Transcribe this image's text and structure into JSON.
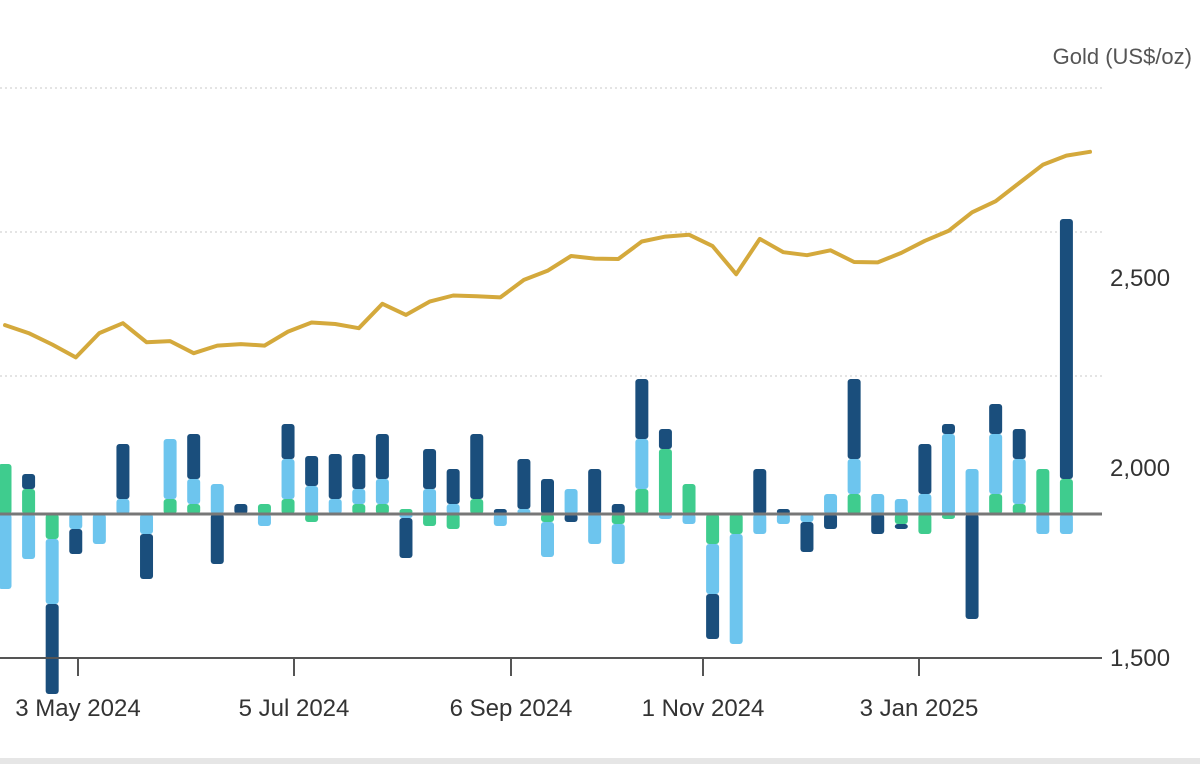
{
  "chart_data": {
    "type": "bar+line",
    "title": "",
    "right_axis": {
      "title": "Gold (US$/oz)",
      "ticks": [
        "1,500",
        "2,000",
        "2,500"
      ],
      "tick_values": [
        1500,
        2000,
        2500
      ],
      "range": [
        1500,
        3000
      ],
      "note": "upper gridlines at 2,750 and 3,000 are unlabeled in the crop"
    },
    "x_axis": {
      "tick_labels": [
        "3 May 2024",
        "5 Jul 2024",
        "6 Sep 2024",
        "1 Nov 2024",
        "3 Jan 2025"
      ]
    },
    "grid": true,
    "colors": {
      "gold_line": "#d4a93c",
      "series_dark_blue": "#1a4e7c",
      "series_light_blue": "#6dc5ee",
      "series_green": "#3fcc8e",
      "baseline": "#777777"
    },
    "series": [
      {
        "values": [
          2376,
          2355,
          2325,
          2291,
          2355,
          2381,
          2331,
          2334,
          2302,
          2322,
          2326,
          2322,
          2359,
          2383,
          2379,
          2368,
          2432,
          2403,
          2438,
          2454,
          2452,
          2449,
          2495,
          2519,
          2558,
          2551,
          2550,
          2596,
          2609,
          2614,
          2584,
          2510,
          2603,
          2568,
          2560,
          2573,
          2542,
          2541,
          2566,
          2598,
          2624,
          2673,
          2702,
          2750,
          2798,
          2822,
          2832
        ]
      }
    ],
    "stacked_bars": {
      "baseline_pixel_note": "zero line of the bar panel",
      "bars": [
        {
          "green": 50,
          "light_blue": -75,
          "dark_blue": 0
        },
        {
          "green": 25,
          "light_blue": -45,
          "dark_blue": 15
        },
        {
          "green": -25,
          "light_blue": -65,
          "dark_blue": -90
        },
        {
          "green": 0,
          "light_blue": -15,
          "dark_blue": -25
        },
        {
          "green": 0,
          "light_blue": -30,
          "dark_blue": 0
        },
        {
          "green": 0,
          "light_blue": 15,
          "dark_blue": 55
        },
        {
          "green": 0,
          "light_blue": -20,
          "dark_blue": -45
        },
        {
          "green": 15,
          "light_blue": 60,
          "dark_blue": 0
        },
        {
          "green": 10,
          "light_blue": 25,
          "dark_blue": 45
        },
        {
          "green": 0,
          "light_blue": 30,
          "dark_blue": -50
        },
        {
          "green": 0,
          "light_blue": 0,
          "dark_blue": 10
        },
        {
          "green": 10,
          "light_blue": -12,
          "dark_blue": 0
        },
        {
          "green": 15,
          "light_blue": 40,
          "dark_blue": 35
        },
        {
          "green": -8,
          "light_blue": 28,
          "dark_blue": 30
        },
        {
          "green": 0,
          "light_blue": 15,
          "dark_blue": 45
        },
        {
          "green": 10,
          "light_blue": 15,
          "dark_blue": 35
        },
        {
          "green": 10,
          "light_blue": 25,
          "dark_blue": 45
        },
        {
          "green": 5,
          "light_blue": -4,
          "dark_blue": -40
        },
        {
          "green": -12,
          "light_blue": 25,
          "dark_blue": 40
        },
        {
          "green": -15,
          "light_blue": 10,
          "dark_blue": 35
        },
        {
          "green": 15,
          "light_blue": 0,
          "dark_blue": 65
        },
        {
          "green": 0,
          "light_blue": -12,
          "dark_blue": 5
        },
        {
          "green": 0,
          "light_blue": 5,
          "dark_blue": 50
        },
        {
          "green": -8,
          "light_blue": -35,
          "dark_blue": 35
        },
        {
          "green": 0,
          "light_blue": 25,
          "dark_blue": -8
        },
        {
          "green": 0,
          "light_blue": -30,
          "dark_blue": 45
        },
        {
          "green": -10,
          "light_blue": -40,
          "dark_blue": 10
        },
        {
          "green": 25,
          "light_blue": 50,
          "dark_blue": 60
        },
        {
          "green": 65,
          "light_blue": -5,
          "dark_blue": 20
        },
        {
          "green": 30,
          "light_blue": -10,
          "dark_blue": 0
        },
        {
          "green": -30,
          "light_blue": -50,
          "dark_blue": -45
        },
        {
          "green": -20,
          "light_blue": -110,
          "dark_blue": 0
        },
        {
          "green": 0,
          "light_blue": -20,
          "dark_blue": 45
        },
        {
          "green": 0,
          "light_blue": -10,
          "dark_blue": 5
        },
        {
          "green": 0,
          "light_blue": -8,
          "dark_blue": -30
        },
        {
          "green": 0,
          "light_blue": 20,
          "dark_blue": -15
        },
        {
          "green": 20,
          "light_blue": 35,
          "dark_blue": 80
        },
        {
          "green": 0,
          "light_blue": 20,
          "dark_blue": -20
        },
        {
          "green": -10,
          "light_blue": 15,
          "dark_blue": -5
        },
        {
          "green": -20,
          "light_blue": 20,
          "dark_blue": 50
        },
        {
          "green": -5,
          "light_blue": 80,
          "dark_blue": 10
        },
        {
          "green": 0,
          "light_blue": 45,
          "dark_blue": -105
        },
        {
          "green": 20,
          "light_blue": 60,
          "dark_blue": 30
        },
        {
          "green": 10,
          "light_blue": 45,
          "dark_blue": 30
        },
        {
          "green": 45,
          "light_blue": -20,
          "dark_blue": 0
        },
        {
          "green": 35,
          "light_blue": -20,
          "dark_blue": 260
        }
      ]
    }
  }
}
